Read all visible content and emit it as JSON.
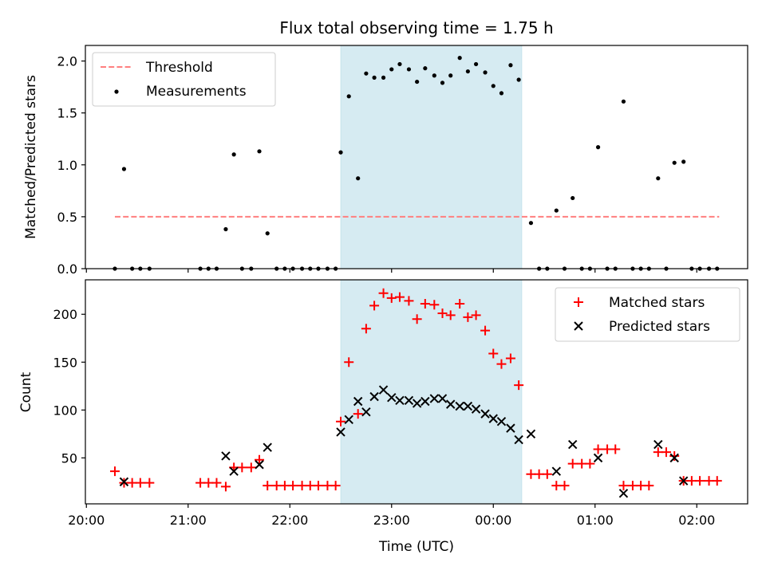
{
  "chart_data": {
    "type": "scatter",
    "title": "Flux total observing time = 1.75 h",
    "xlabel": "Time (UTC)",
    "x_unit": "hour of day (UTC)",
    "x_ticks": [
      {
        "value": 20.0,
        "label": "20:00"
      },
      {
        "value": 21.0,
        "label": "21:00"
      },
      {
        "value": 22.0,
        "label": "22:00"
      },
      {
        "value": 23.0,
        "label": "23:00"
      },
      {
        "value": 24.0,
        "label": "00:00"
      },
      {
        "value": 25.0,
        "label": "01:00"
      },
      {
        "value": 26.0,
        "label": "02:00"
      }
    ],
    "xlim": [
      19.99,
      26.5
    ],
    "shaded_span": {
      "x_start": 22.5,
      "x_end": 24.28,
      "color": "#add8e6"
    },
    "top": {
      "ylabel": "Matched/Predicted stars",
      "ylim": [
        0,
        2.15
      ],
      "y_ticks": [
        {
          "value": 0.0,
          "label": "0.0"
        },
        {
          "value": 0.5,
          "label": "0.5"
        },
        {
          "value": 1.0,
          "label": "1.0"
        },
        {
          "value": 1.5,
          "label": "1.5"
        },
        {
          "value": 2.0,
          "label": "2.0"
        }
      ],
      "legend_position": "top-left",
      "threshold": {
        "name": "Threshold",
        "value": 0.5,
        "x_start": 20.28,
        "x_end": 26.22,
        "color": "#ff7f7f"
      },
      "measurements": {
        "name": "Measurements",
        "color": "#000000",
        "x": [
          20.28,
          20.37,
          20.45,
          20.53,
          20.62,
          21.12,
          21.2,
          21.28,
          21.37,
          21.45,
          21.53,
          21.62,
          21.7,
          21.78,
          21.87,
          21.95,
          22.03,
          22.12,
          22.2,
          22.28,
          22.37,
          22.45,
          22.5,
          22.58,
          22.67,
          22.75,
          22.83,
          22.92,
          23.0,
          23.08,
          23.17,
          23.25,
          23.33,
          23.42,
          23.5,
          23.58,
          23.67,
          23.75,
          23.83,
          23.92,
          24.0,
          24.08,
          24.17,
          24.25,
          24.37,
          24.45,
          24.53,
          24.62,
          24.7,
          24.78,
          24.87,
          24.95,
          25.03,
          25.12,
          25.2,
          25.28,
          25.37,
          25.45,
          25.53,
          25.62,
          25.7,
          25.78,
          25.87,
          25.95,
          26.03,
          26.12,
          26.2
        ],
        "y": [
          0.0,
          0.96,
          0.0,
          0.0,
          0.0,
          0.0,
          0.0,
          0.0,
          0.38,
          1.1,
          0.0,
          0.0,
          1.13,
          0.34,
          0.0,
          0.0,
          0.0,
          0.0,
          0.0,
          0.0,
          0.0,
          0.0,
          1.12,
          1.66,
          0.87,
          1.88,
          1.84,
          1.84,
          1.92,
          1.97,
          1.92,
          1.8,
          1.93,
          1.86,
          1.79,
          1.86,
          2.03,
          1.9,
          1.97,
          1.89,
          1.76,
          1.69,
          1.96,
          1.82,
          0.44,
          0.0,
          0.0,
          0.56,
          0.0,
          0.68,
          0.0,
          0.0,
          1.17,
          0.0,
          0.0,
          1.61,
          0.0,
          0.0,
          0.0,
          0.87,
          0.0,
          1.02,
          1.03,
          0.0,
          0.0,
          0.0,
          0.0
        ]
      }
    },
    "bottom": {
      "ylabel": "Count",
      "ylim": [
        2,
        236
      ],
      "y_ticks": [
        {
          "value": 50,
          "label": "50"
        },
        {
          "value": 100,
          "label": "100"
        },
        {
          "value": 150,
          "label": "150"
        },
        {
          "value": 200,
          "label": "200"
        }
      ],
      "legend_position": "top-right",
      "series": [
        {
          "name": "Matched stars",
          "marker": "plus",
          "color": "#ff0000",
          "x": [
            20.28,
            20.37,
            20.45,
            20.53,
            20.62,
            21.12,
            21.2,
            21.28,
            21.37,
            21.45,
            21.53,
            21.62,
            21.7,
            21.78,
            21.87,
            21.95,
            22.03,
            22.12,
            22.2,
            22.28,
            22.37,
            22.45,
            22.5,
            22.58,
            22.67,
            22.75,
            22.83,
            22.92,
            23.0,
            23.08,
            23.17,
            23.25,
            23.33,
            23.42,
            23.5,
            23.58,
            23.67,
            23.75,
            23.83,
            23.92,
            24.0,
            24.08,
            24.17,
            24.25,
            24.37,
            24.45,
            24.53,
            24.62,
            24.7,
            24.78,
            24.87,
            24.95,
            25.03,
            25.12,
            25.2,
            25.28,
            25.37,
            25.45,
            25.53,
            25.62,
            25.7,
            25.78,
            25.87,
            25.95,
            26.03,
            26.12,
            26.2
          ],
          "y": [
            36,
            24,
            24,
            24,
            24,
            24,
            24,
            24,
            20,
            40,
            40,
            40,
            48,
            21,
            21,
            21,
            21,
            21,
            21,
            21,
            21,
            21,
            88,
            150,
            96,
            185,
            209,
            222,
            217,
            218,
            214,
            195,
            211,
            210,
            201,
            199,
            211,
            197,
            199,
            183,
            159,
            148,
            154,
            126,
            33,
            33,
            33,
            21,
            21,
            44,
            44,
            44,
            59,
            59,
            59,
            21,
            21,
            21,
            21,
            56,
            56,
            52,
            26,
            26,
            26,
            26,
            26
          ]
        },
        {
          "name": "Predicted stars",
          "marker": "x",
          "color": "#000000",
          "x": [
            20.37,
            21.37,
            21.45,
            21.7,
            21.78,
            22.5,
            22.58,
            22.67,
            22.75,
            22.83,
            22.92,
            23.0,
            23.08,
            23.17,
            23.25,
            23.33,
            23.42,
            23.5,
            23.58,
            23.67,
            23.75,
            23.83,
            23.92,
            24.0,
            24.08,
            24.17,
            24.25,
            24.37,
            24.62,
            24.78,
            25.03,
            25.28,
            25.62,
            25.78,
            25.87
          ],
          "y": [
            25,
            52,
            36,
            43,
            61,
            77,
            90,
            109,
            98,
            114,
            121,
            113,
            110,
            110,
            107,
            109,
            112,
            112,
            106,
            104,
            104,
            101,
            96,
            91,
            88,
            81,
            69,
            75,
            36,
            64,
            50,
            13,
            64,
            50,
            26
          ]
        }
      ]
    }
  }
}
